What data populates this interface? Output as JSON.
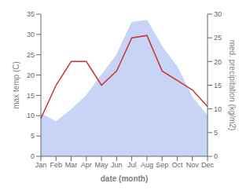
{
  "chart_data": {
    "type": "area",
    "categories": [
      "Jan",
      "Feb",
      "Mar",
      "Apr",
      "May",
      "Jun",
      "Jul",
      "Aug",
      "Sep",
      "Oct",
      "Nov",
      "Dec"
    ],
    "xlabel": "date (month)",
    "ylabel": "max temp (C)",
    "y2label": "med. precipitation (kg/m2)",
    "series": [
      {
        "type": "area",
        "color": "#c8d4f5",
        "values": [
          10.5,
          8.5,
          11.5,
          15.0,
          20.0,
          25.0,
          33.0,
          33.5,
          27.0,
          22.0,
          14.5,
          10.0
        ]
      },
      {
        "type": "line",
        "color": "#cc3333",
        "axis": "y2",
        "values": [
          8.0,
          15.0,
          20.0,
          20.0,
          15.0,
          18.0,
          25.0,
          25.5,
          18.0,
          16.0,
          14.0,
          10.5
        ]
      }
    ],
    "ylim": [
      0,
      35
    ],
    "yticks": [
      0,
      5,
      10,
      15,
      20,
      25,
      30,
      35
    ],
    "y2lim": [
      0,
      30
    ],
    "y2ticks": [
      0,
      5,
      10,
      15,
      20,
      25,
      30
    ],
    "grid": false
  }
}
